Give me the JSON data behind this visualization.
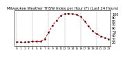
{
  "title": "Milwaukee Weather THSW Index per Hour (F) (Last 24 Hours)",
  "hours": [
    0,
    1,
    2,
    3,
    4,
    5,
    6,
    7,
    8,
    9,
    10,
    11,
    12,
    13,
    14,
    15,
    16,
    17,
    18,
    19,
    20,
    21,
    22,
    23
  ],
  "values": [
    22,
    21,
    21,
    22,
    23,
    23,
    23,
    30,
    48,
    68,
    82,
    95,
    100,
    101,
    100,
    98,
    92,
    80,
    65,
    52,
    44,
    38,
    33,
    30
  ],
  "line_color": "#ff0000",
  "marker_color": "#000000",
  "background_color": "#ffffff",
  "grid_color": "#888888",
  "ylim": [
    10,
    110
  ],
  "yticks": [
    20,
    30,
    40,
    50,
    60,
    70,
    80,
    90,
    100
  ],
  "ylabel_fontsize": 3.5,
  "title_fontsize": 3.8,
  "xlabel_fontsize": 3.2,
  "grid_vlines": [
    0,
    4,
    8,
    12,
    16,
    20
  ]
}
